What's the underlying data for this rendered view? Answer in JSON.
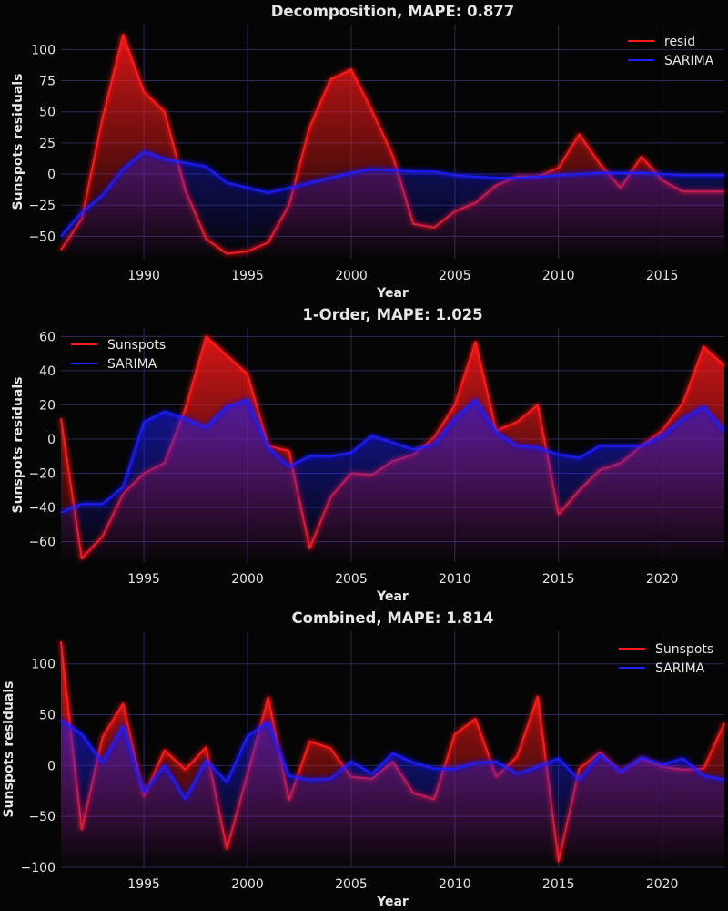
{
  "colors": {
    "background": "#050505",
    "grid": "#2b2b5a",
    "text": "#e6e6e6",
    "series_red": "#ff1a1a",
    "series_blue": "#1f1fff"
  },
  "chart_data": [
    {
      "type": "area",
      "title": "Decomposition, MAPE: 0.877",
      "xlabel": "Year",
      "ylabel": "Sunspots residuals",
      "xlim": [
        1986,
        2018
      ],
      "ylim": [
        -68,
        120
      ],
      "xticks": [
        1990,
        1995,
        2000,
        2005,
        2010,
        2015
      ],
      "yticks": [
        -50,
        -25,
        0,
        25,
        50,
        75,
        100
      ],
      "legend": "top-right",
      "grid": true,
      "x": [
        1986,
        1987,
        1988,
        1989,
        1990,
        1991,
        1992,
        1993,
        1994,
        1995,
        1996,
        1997,
        1998,
        1999,
        2000,
        2001,
        2002,
        2003,
        2004,
        2005,
        2006,
        2007,
        2008,
        2009,
        2010,
        2011,
        2012,
        2013,
        2014,
        2015,
        2016,
        2017,
        2018
      ],
      "series": [
        {
          "name": "resid",
          "color": "red",
          "values": [
            -61,
            -36,
            45,
            112,
            66,
            50,
            -13,
            -52,
            -64,
            -62,
            -55,
            -25,
            38,
            76,
            84,
            51,
            15,
            -40,
            -43,
            -30,
            -23,
            -9,
            -2,
            -2,
            5,
            32,
            8,
            -11,
            14,
            -5,
            -14,
            -14,
            -14
          ]
        },
        {
          "name": "SARIMA",
          "color": "blue",
          "values": [
            -50,
            -31,
            -17,
            4,
            18,
            12,
            9,
            6,
            -7,
            -11,
            -15,
            -11,
            -7,
            -3,
            1,
            4,
            3,
            2,
            2,
            -1,
            -2,
            -3,
            -3,
            -2,
            -1,
            0,
            1,
            1,
            1,
            0,
            -1,
            -1,
            -1
          ]
        }
      ]
    },
    {
      "type": "area",
      "title": "1-Order, MAPE: 1.025",
      "xlabel": "Year",
      "ylabel": "Sunspots residuals",
      "xlim": [
        1991,
        2023
      ],
      "ylim": [
        -72,
        65
      ],
      "xticks": [
        1995,
        2000,
        2005,
        2010,
        2015,
        2020
      ],
      "yticks": [
        -60,
        -40,
        -20,
        0,
        20,
        40,
        60
      ],
      "legend": "top-left",
      "grid": true,
      "x": [
        1991,
        1992,
        1993,
        1994,
        1995,
        1996,
        1997,
        1998,
        1999,
        2000,
        2001,
        2002,
        2003,
        2004,
        2005,
        2006,
        2007,
        2008,
        2009,
        2010,
        2011,
        2012,
        2013,
        2014,
        2015,
        2016,
        2017,
        2018,
        2019,
        2020,
        2021,
        2022,
        2023
      ],
      "series": [
        {
          "name": "Sunspots",
          "color": "red",
          "values": [
            12,
            -70,
            -57,
            -32,
            -20,
            -14,
            18,
            60,
            49,
            38,
            -4,
            -7,
            -64,
            -34,
            -20,
            -21,
            -13,
            -9,
            1,
            20,
            57,
            5,
            10,
            20,
            -44,
            -30,
            -18,
            -14,
            -4,
            5,
            21,
            54,
            43
          ]
        },
        {
          "name": "SARIMA",
          "color": "blue",
          "values": [
            -43,
            -38,
            -38,
            -28,
            10,
            16,
            12,
            7,
            19,
            23,
            -5,
            -16,
            -10,
            -10,
            -8,
            2,
            -2,
            -6,
            -3,
            12,
            23,
            4,
            -4,
            -5,
            -9,
            -11,
            -4,
            -4,
            -4,
            2,
            12,
            19,
            5
          ]
        }
      ]
    },
    {
      "type": "area",
      "title": "Combined, MAPE: 1.814",
      "xlabel": "Year",
      "ylabel": "Sunspots residuals",
      "xlim": [
        1991,
        2023
      ],
      "ylim": [
        -100,
        132
      ],
      "xticks": [
        1995,
        2000,
        2005,
        2010,
        2015,
        2020
      ],
      "yticks": [
        -100,
        -50,
        0,
        50,
        100
      ],
      "legend": "top-right",
      "grid": true,
      "x": [
        1991,
        1992,
        1993,
        1994,
        1995,
        1996,
        1997,
        1998,
        1999,
        2000,
        2001,
        2002,
        2003,
        2004,
        2005,
        2006,
        2007,
        2008,
        2009,
        2010,
        2011,
        2012,
        2013,
        2014,
        2015,
        2016,
        2017,
        2018,
        2019,
        2020,
        2021,
        2022,
        2023
      ],
      "series": [
        {
          "name": "Sunspots",
          "color": "red",
          "values": [
            122,
            -63,
            28,
            61,
            -30,
            15,
            -4,
            18,
            -82,
            -8,
            67,
            -34,
            24,
            17,
            -11,
            -13,
            4,
            -27,
            -33,
            31,
            46,
            -11,
            9,
            68,
            -94,
            -3,
            13,
            -6,
            7,
            -1,
            -4,
            -3,
            42
          ]
        },
        {
          "name": "SARIMA",
          "color": "blue",
          "values": [
            45,
            31,
            3,
            39,
            -26,
            0,
            -33,
            5,
            -16,
            29,
            43,
            -10,
            -14,
            -13,
            4,
            -8,
            12,
            3,
            -3,
            -3,
            3,
            4,
            -8,
            -1,
            7,
            -14,
            11,
            -6,
            8,
            1,
            7,
            -10,
            -14
          ]
        }
      ]
    }
  ]
}
